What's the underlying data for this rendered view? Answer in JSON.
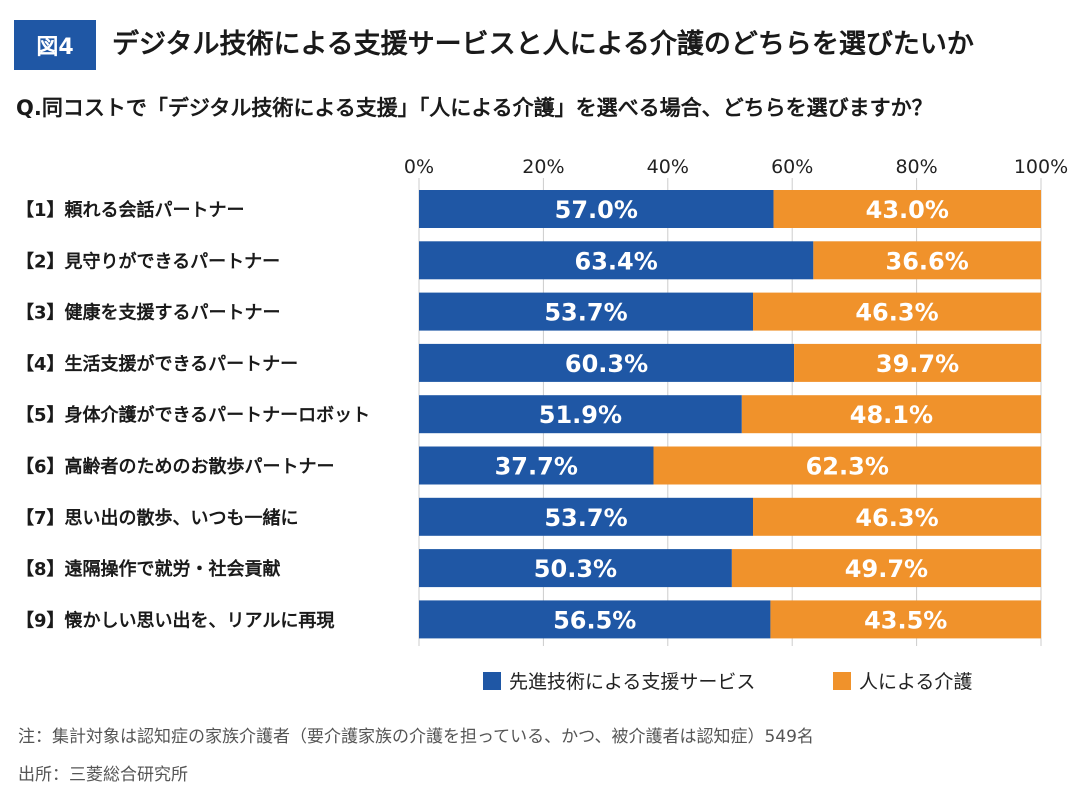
{
  "header": {
    "badge": "図4",
    "title": "デジタル技術による支援サービスと人による介護のどちらを選びたいか",
    "question": "Q.同コストで「デジタル技術による支援」「人による介護」を選べる場合、どちらを選びますか？"
  },
  "chart_data": {
    "type": "bar",
    "orientation": "horizontal",
    "stacked": true,
    "percent_stacked": true,
    "xlim": [
      0,
      100
    ],
    "x_ticks": [
      "0%",
      "20%",
      "40%",
      "60%",
      "80%",
      "100%"
    ],
    "grid": true,
    "legend_position": "bottom",
    "categories": [
      "【1】頼れる会話パートナー",
      "【2】見守りができるパートナー",
      "【3】健康を支援するパートナー",
      "【4】生活支援ができるパートナー",
      "【5】身体介護ができるパートナーロボット",
      "【6】高齢者のためのお散歩パートナー",
      "【7】思い出の散歩、いつも一緒に",
      "【8】遠隔操作で就労・社会貢献",
      "【9】懐かしい思い出を、リアルに再現"
    ],
    "series": [
      {
        "name": "先進技術による支援サービス",
        "color": "#1f57a5",
        "values": [
          57.0,
          63.4,
          53.7,
          60.3,
          51.9,
          37.7,
          53.7,
          50.3,
          56.5
        ],
        "labels": [
          "57.0%",
          "63.4%",
          "53.7%",
          "60.3%",
          "51.9%",
          "37.7%",
          "53.7%",
          "50.3%",
          "56.5%"
        ]
      },
      {
        "name": "人による介護",
        "color": "#f0922b",
        "values": [
          43.0,
          36.6,
          46.3,
          39.7,
          48.1,
          62.3,
          46.3,
          49.7,
          43.5
        ],
        "labels": [
          "43.0%",
          "36.6%",
          "46.3%",
          "39.7%",
          "48.1%",
          "62.3%",
          "46.3%",
          "49.7%",
          "43.5%"
        ]
      }
    ]
  },
  "footer": {
    "note": "注：集計対象は認知症の家族介護者（要介護家族の介護を担っている、かつ、被介護者は認知症）549名",
    "source": "出所：三菱総合研究所"
  }
}
